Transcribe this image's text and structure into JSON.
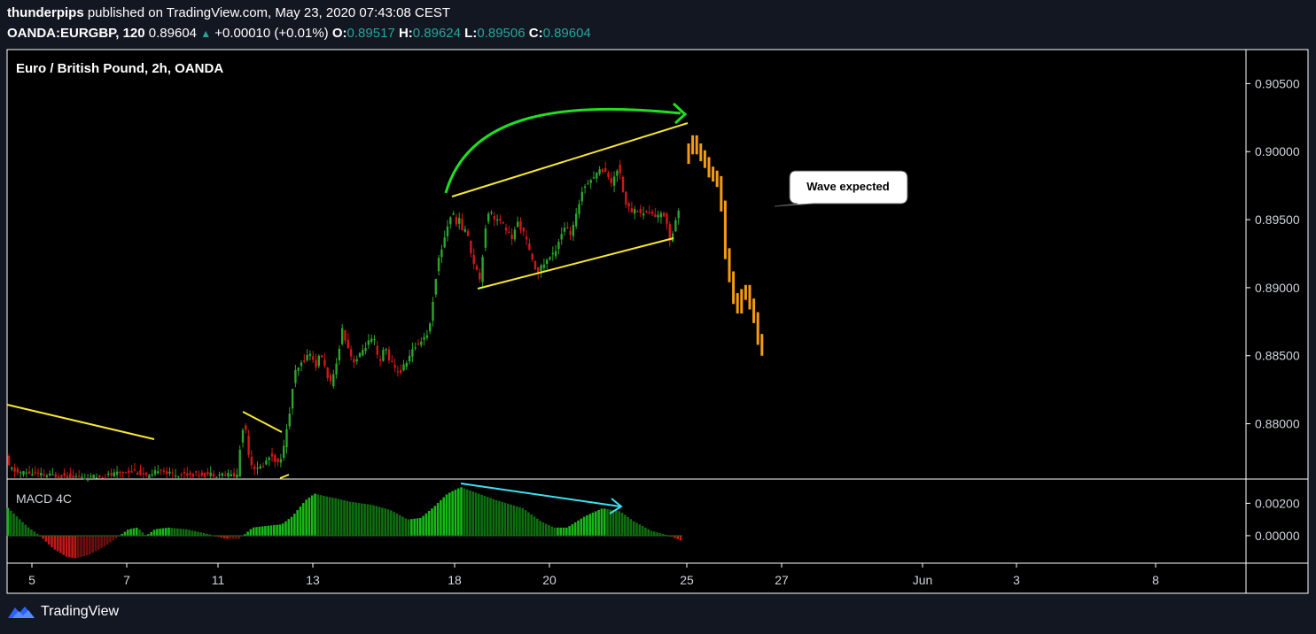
{
  "header": {
    "publisher": "thunderpips",
    "published_text": "published on TradingView.com, May 23, 2020 07:43:08 CEST",
    "symbol": "OANDA:EURGBP, 120",
    "last": "0.89604",
    "change_icon": "triangle-up-icon",
    "change": "+0.00010 (+0.01%)",
    "o_label": "O:",
    "o_value": "0.89517",
    "h_label": "H:",
    "h_value": "0.89624",
    "l_label": "L:",
    "l_value": "0.89506",
    "c_label": "C:",
    "c_value": "0.89604"
  },
  "footer": {
    "brand": "TradingView",
    "logo_icon": "tradingview-logo-icon"
  },
  "colors": {
    "background": "#131722",
    "plot": "#000000",
    "border": "#ffffff",
    "up": "#2ca52c",
    "down": "#d01818",
    "projection": "#f39c12",
    "trendline": "#f7e733",
    "arrow": "#22dd22",
    "divergence": "#3ee0f0",
    "macd_up_strong": "#18b818",
    "macd_up_weak": "#0f6e0f",
    "macd_down_strong": "#c41818",
    "macd_down_weak": "#6e1010"
  },
  "chart_data": {
    "type": "candlestick",
    "title": "Euro / British Pound, 2h, OANDA",
    "price_axis": {
      "ticks": [
        "0.90500",
        "0.90000",
        "0.89500",
        "0.89000",
        "0.88500",
        "0.88000"
      ],
      "ylim": [
        0.876,
        0.9075
      ]
    },
    "time_axis": {
      "ticks": [
        "5",
        "7",
        "11",
        "13",
        "18",
        "20",
        "25",
        "27",
        "Jun",
        "3",
        "8"
      ]
    },
    "price_points": [
      [
        0,
        0.8813
      ],
      [
        3,
        0.8794
      ],
      [
        6,
        0.8779
      ],
      [
        10,
        0.8768
      ],
      [
        20,
        0.8764
      ],
      [
        30,
        0.8764
      ],
      [
        50,
        0.8762
      ],
      [
        70,
        0.8762
      ],
      [
        100,
        0.876
      ],
      [
        130,
        0.8763
      ],
      [
        150,
        0.8766
      ],
      [
        170,
        0.876
      ],
      [
        180,
        0.8768
      ],
      [
        190,
        0.8763
      ],
      [
        220,
        0.8763
      ],
      [
        250,
        0.8763
      ],
      [
        268,
        0.8762
      ],
      [
        272,
        0.879
      ],
      [
        276,
        0.8802
      ],
      [
        282,
        0.8772
      ],
      [
        290,
        0.8766
      ],
      [
        298,
        0.877
      ],
      [
        306,
        0.8778
      ],
      [
        314,
        0.877
      ],
      [
        320,
        0.8782
      ],
      [
        326,
        0.8804
      ],
      [
        332,
        0.8836
      ],
      [
        338,
        0.8842
      ],
      [
        344,
        0.8848
      ],
      [
        350,
        0.8852
      ],
      [
        356,
        0.8842
      ],
      [
        362,
        0.8852
      ],
      [
        368,
        0.8838
      ],
      [
        374,
        0.8828
      ],
      [
        380,
        0.8845
      ],
      [
        386,
        0.887
      ],
      [
        392,
        0.8858
      ],
      [
        398,
        0.8846
      ],
      [
        404,
        0.8848
      ],
      [
        410,
        0.8855
      ],
      [
        416,
        0.886
      ],
      [
        422,
        0.8862
      ],
      [
        428,
        0.8842
      ],
      [
        434,
        0.8858
      ],
      [
        440,
        0.8846
      ],
      [
        446,
        0.884
      ],
      [
        452,
        0.8838
      ],
      [
        458,
        0.8845
      ],
      [
        464,
        0.8852
      ],
      [
        470,
        0.8858
      ],
      [
        476,
        0.8862
      ],
      [
        482,
        0.8866
      ],
      [
        486,
        0.8875
      ],
      [
        490,
        0.89
      ],
      [
        494,
        0.8918
      ],
      [
        498,
        0.8928
      ],
      [
        502,
        0.8938
      ],
      [
        506,
        0.8948
      ],
      [
        510,
        0.8956
      ],
      [
        514,
        0.8948
      ],
      [
        518,
        0.895
      ],
      [
        522,
        0.8942
      ],
      [
        526,
        0.8944
      ],
      [
        530,
        0.893
      ],
      [
        534,
        0.892
      ],
      [
        538,
        0.8912
      ],
      [
        542,
        0.8906
      ],
      [
        546,
        0.8934
      ],
      [
        550,
        0.8956
      ],
      [
        554,
        0.8955
      ],
      [
        560,
        0.895
      ],
      [
        566,
        0.8948
      ],
      [
        572,
        0.8942
      ],
      [
        578,
        0.8936
      ],
      [
        584,
        0.8948
      ],
      [
        590,
        0.8942
      ],
      [
        596,
        0.893
      ],
      [
        602,
        0.8916
      ],
      [
        608,
        0.8912
      ],
      [
        614,
        0.8918
      ],
      [
        620,
        0.8922
      ],
      [
        626,
        0.8926
      ],
      [
        632,
        0.8938
      ],
      [
        638,
        0.8946
      ],
      [
        644,
        0.8938
      ],
      [
        650,
        0.8952
      ],
      [
        656,
        0.897
      ],
      [
        662,
        0.8978
      ],
      [
        668,
        0.898
      ],
      [
        674,
        0.8985
      ],
      [
        680,
        0.8987
      ],
      [
        686,
        0.8984
      ],
      [
        690,
        0.8975
      ],
      [
        694,
        0.8984
      ],
      [
        698,
        0.899
      ],
      [
        702,
        0.8975
      ],
      [
        706,
        0.8962
      ],
      [
        712,
        0.8956
      ],
      [
        718,
        0.8958
      ],
      [
        724,
        0.8954
      ],
      [
        730,
        0.8956
      ],
      [
        736,
        0.8954
      ],
      [
        742,
        0.8952
      ],
      [
        748,
        0.8955
      ],
      [
        752,
        0.895
      ],
      [
        756,
        0.8934
      ],
      [
        760,
        0.8944
      ],
      [
        764,
        0.8954
      ],
      [
        768,
        0.896
      ]
    ],
    "projection": [
      0.8995,
      0.9002,
      0.9008,
      0.9002,
      0.8997,
      0.8992,
      0.8985,
      0.8982,
      0.8978,
      0.896,
      0.8925,
      0.8908,
      0.8892,
      0.8885,
      0.8895,
      0.8898,
      0.8888,
      0.8878,
      0.8862
    ],
    "annotation": "Wave expected",
    "macd": {
      "title": "MACD 4C",
      "ticks": [
        "0.00200",
        "0.00000"
      ],
      "ylim": [
        -0.0017,
        0.0035
      ],
      "points": [
        [
          0,
          0.0022
        ],
        [
          30,
          0.0006
        ],
        [
          45,
          0.0
        ],
        [
          60,
          -0.0008
        ],
        [
          75,
          -0.0013
        ],
        [
          85,
          -0.0014
        ],
        [
          100,
          -0.0012
        ],
        [
          120,
          -0.0006
        ],
        [
          135,
          0.0
        ],
        [
          145,
          0.0004
        ],
        [
          155,
          0.0005
        ],
        [
          165,
          0.0
        ],
        [
          175,
          0.0004
        ],
        [
          190,
          0.0005
        ],
        [
          210,
          0.0004
        ],
        [
          235,
          0.0001
        ],
        [
          255,
          -0.0002
        ],
        [
          270,
          -0.0002
        ],
        [
          285,
          0.0005
        ],
        [
          300,
          0.0006
        ],
        [
          318,
          0.0007
        ],
        [
          330,
          0.0012
        ],
        [
          345,
          0.0022
        ],
        [
          355,
          0.0026
        ],
        [
          370,
          0.0024
        ],
        [
          380,
          0.0023
        ],
        [
          395,
          0.0021
        ],
        [
          420,
          0.0019
        ],
        [
          440,
          0.0016
        ],
        [
          460,
          0.001
        ],
        [
          475,
          0.0011
        ],
        [
          490,
          0.0018
        ],
        [
          505,
          0.0026
        ],
        [
          520,
          0.003
        ],
        [
          535,
          0.0027
        ],
        [
          560,
          0.0022
        ],
        [
          590,
          0.0017
        ],
        [
          610,
          0.0009
        ],
        [
          625,
          0.0005
        ],
        [
          640,
          0.0005
        ],
        [
          660,
          0.0012
        ],
        [
          680,
          0.0017
        ],
        [
          700,
          0.0015
        ],
        [
          715,
          0.0009
        ],
        [
          735,
          0.0003
        ],
        [
          755,
          0.0
        ],
        [
          768,
          -0.0003
        ]
      ]
    }
  }
}
